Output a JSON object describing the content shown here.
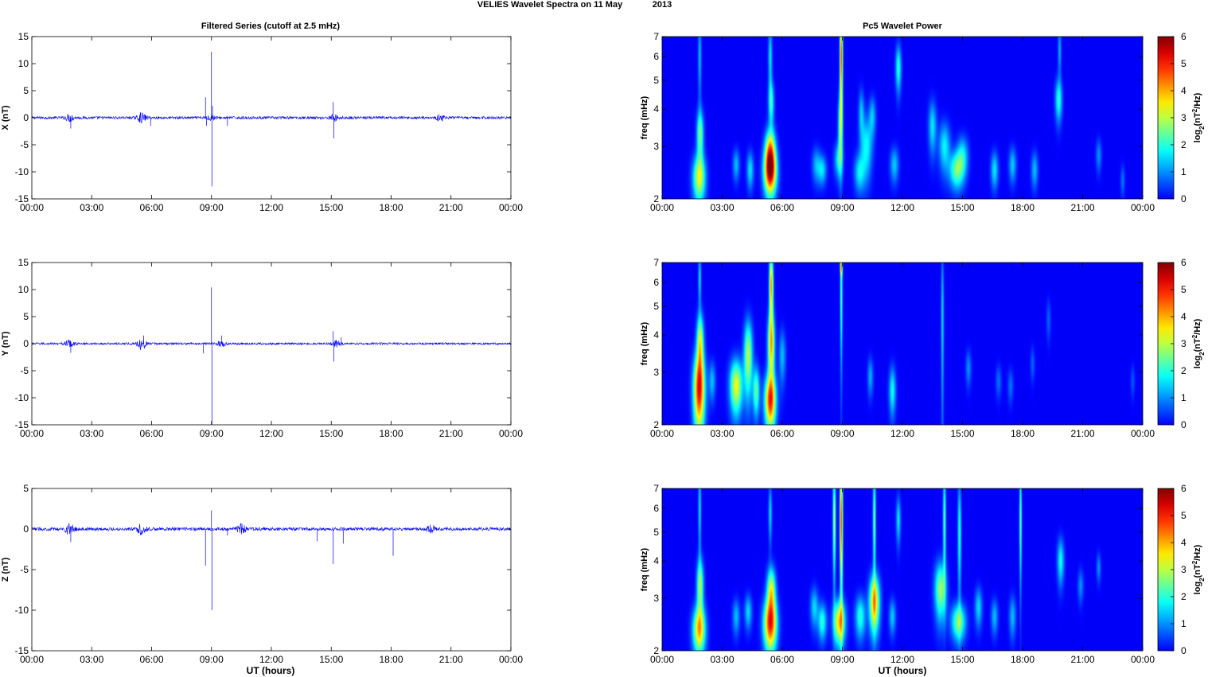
{
  "figure": {
    "title": "VELIES Wavelet Spectra on 11 May",
    "title_year": "2013",
    "left_title": "Filtered Series (cutoff at 2.5 mHz)",
    "right_title": "Pc5 Wavelet Power",
    "xlabel": "UT (hours)",
    "spec_ylabel": "freq (mHz)",
    "colorbar_label": "log2(nT2/Hz)"
  },
  "colors": {
    "trace": "#0000ff",
    "spectrogram_background": "#00008f",
    "axes": "#000000"
  },
  "chart_data": [
    {
      "type": "line",
      "id": "x",
      "ylabel": "X (nT)",
      "ylim": [
        -15,
        15
      ],
      "yticks": [
        -15,
        -10,
        -5,
        0,
        5,
        10,
        15
      ],
      "xlim": [
        0,
        24
      ],
      "xtick_labels": [
        "00:00",
        "03:00",
        "06:00",
        "09:00",
        "12:00",
        "15:00",
        "18:00",
        "21:00",
        "00:00"
      ],
      "baseline_noise_nT": 0.25,
      "bursts": [
        [
          1.9,
          0.6
        ],
        [
          5.5,
          0.8
        ],
        [
          9.0,
          0.4
        ],
        [
          15.2,
          0.6
        ],
        [
          20.5,
          0.6
        ]
      ],
      "spikes": [
        [
          1.95,
          -2.0
        ],
        [
          5.95,
          -1.5
        ],
        [
          8.7,
          3.8
        ],
        [
          8.75,
          -1.5
        ],
        [
          9.0,
          12.2
        ],
        [
          9.02,
          -12.7
        ],
        [
          9.05,
          2.2
        ],
        [
          9.8,
          -1.5
        ],
        [
          15.1,
          2.9
        ],
        [
          15.13,
          -3.8
        ]
      ]
    },
    {
      "type": "line",
      "id": "y",
      "ylabel": "Y (nT)",
      "ylim": [
        -15,
        15
      ],
      "yticks": [
        -15,
        -10,
        -5,
        0,
        5,
        10,
        15
      ],
      "xlim": [
        0,
        24
      ],
      "xtick_labels": [
        "00:00",
        "03:00",
        "06:00",
        "09:00",
        "12:00",
        "15:00",
        "18:00",
        "21:00",
        "00:00"
      ],
      "baseline_noise_nT": 0.2,
      "bursts": [
        [
          1.9,
          0.7
        ],
        [
          5.5,
          1.0
        ],
        [
          9.5,
          0.5
        ],
        [
          15.3,
          0.6
        ]
      ],
      "spikes": [
        [
          1.95,
          -1.7
        ],
        [
          5.6,
          1.5
        ],
        [
          8.6,
          -1.8
        ],
        [
          9.0,
          10.4
        ],
        [
          9.02,
          -15.0
        ],
        [
          9.5,
          1.5
        ],
        [
          15.1,
          2.3
        ],
        [
          15.13,
          -3.3
        ],
        [
          15.5,
          1.2
        ]
      ]
    },
    {
      "type": "line",
      "id": "z",
      "ylabel": "Z (nT)",
      "ylim": [
        -15,
        5
      ],
      "yticks": [
        -15,
        -10,
        -5,
        0,
        5
      ],
      "xlim": [
        0,
        24
      ],
      "xtick_labels": [
        "00:00",
        "03:00",
        "06:00",
        "09:00",
        "12:00",
        "15:00",
        "18:00",
        "21:00",
        "00:00"
      ],
      "baseline_noise_nT": 0.2,
      "bursts": [
        [
          1.9,
          0.7
        ],
        [
          5.5,
          0.7
        ],
        [
          10.5,
          0.6
        ],
        [
          20.0,
          0.4
        ]
      ],
      "spikes": [
        [
          1.95,
          -1.6
        ],
        [
          8.7,
          -4.5
        ],
        [
          9.0,
          2.3
        ],
        [
          9.02,
          -10.0
        ],
        [
          9.8,
          -0.8
        ],
        [
          14.3,
          -1.5
        ],
        [
          15.1,
          -4.3
        ],
        [
          15.6,
          -1.8
        ],
        [
          18.1,
          -3.3
        ]
      ]
    },
    {
      "type": "heatmap",
      "id": "x_power",
      "ylabel": "freq (mHz)",
      "ylim_mHz": [
        2,
        7
      ],
      "yticks": [
        2,
        3,
        4,
        5,
        6,
        7
      ],
      "xlim": [
        0,
        24
      ],
      "xtick_labels": [
        "00:00",
        "03:00",
        "06:00",
        "09:00",
        "12:00",
        "15:00",
        "18:00",
        "21:00",
        "00:00"
      ],
      "clim": [
        0,
        6
      ],
      "colorbar_ticks": [
        0,
        1,
        2,
        3,
        4,
        5,
        6
      ],
      "blobs": [
        [
          1.85,
          2.35,
          0.22,
          0.3,
          3.2
        ],
        [
          1.9,
          3.3,
          0.12,
          0.45,
          2.5
        ],
        [
          1.88,
          6.0,
          0.06,
          1.3,
          1.3
        ],
        [
          3.7,
          2.6,
          0.12,
          0.22,
          1.3
        ],
        [
          4.4,
          2.5,
          0.12,
          0.25,
          1.6
        ],
        [
          5.4,
          2.45,
          0.22,
          0.3,
          4.8
        ],
        [
          5.4,
          2.9,
          0.18,
          0.35,
          3.8
        ],
        [
          5.45,
          4.2,
          0.1,
          0.5,
          2.0
        ],
        [
          5.4,
          6.0,
          0.07,
          1.0,
          1.6
        ],
        [
          7.7,
          2.6,
          0.15,
          0.25,
          1.2
        ],
        [
          8.0,
          2.5,
          0.15,
          0.2,
          1.5
        ],
        [
          8.95,
          6.0,
          0.05,
          1.5,
          4.8
        ],
        [
          8.9,
          3.5,
          0.08,
          0.7,
          2.4
        ],
        [
          8.8,
          2.7,
          0.15,
          0.25,
          1.5
        ],
        [
          9.85,
          2.45,
          0.18,
          0.25,
          1.6
        ],
        [
          10.2,
          3.0,
          0.2,
          0.5,
          1.8
        ],
        [
          10.5,
          3.8,
          0.12,
          0.4,
          1.3
        ],
        [
          9.95,
          3.9,
          0.1,
          0.5,
          1.3
        ],
        [
          11.8,
          5.5,
          0.1,
          0.7,
          2.0
        ],
        [
          11.6,
          2.6,
          0.15,
          0.25,
          1.4
        ],
        [
          13.5,
          3.5,
          0.14,
          0.5,
          1.6
        ],
        [
          14.1,
          3.0,
          0.2,
          0.4,
          1.7
        ],
        [
          14.7,
          2.5,
          0.25,
          0.25,
          2.4
        ],
        [
          15.0,
          2.8,
          0.2,
          0.3,
          1.6
        ],
        [
          16.6,
          2.5,
          0.13,
          0.25,
          1.6
        ],
        [
          17.5,
          2.6,
          0.13,
          0.25,
          1.4
        ],
        [
          18.6,
          2.5,
          0.12,
          0.25,
          1.3
        ],
        [
          19.8,
          4.3,
          0.12,
          0.5,
          2.0
        ],
        [
          19.85,
          6.3,
          0.06,
          0.8,
          1.2
        ],
        [
          21.8,
          2.8,
          0.1,
          0.25,
          1.0
        ],
        [
          23.0,
          2.3,
          0.08,
          0.2,
          0.8
        ]
      ]
    },
    {
      "type": "heatmap",
      "id": "y_power",
      "ylabel": "freq (mHz)",
      "ylim_mHz": [
        2,
        7
      ],
      "yticks": [
        2,
        3,
        4,
        5,
        6,
        7
      ],
      "xlim": [
        0,
        24
      ],
      "xtick_labels": [
        "00:00",
        "03:00",
        "06:00",
        "09:00",
        "12:00",
        "15:00",
        "18:00",
        "21:00",
        "00:00"
      ],
      "clim": [
        0,
        6
      ],
      "colorbar_ticks": [
        0,
        1,
        2,
        3,
        4,
        5,
        6
      ],
      "blobs": [
        [
          1.85,
          2.6,
          0.2,
          0.55,
          5.0
        ],
        [
          1.9,
          3.8,
          0.12,
          0.6,
          3.2
        ],
        [
          1.88,
          6.2,
          0.05,
          0.9,
          1.6
        ],
        [
          2.5,
          2.8,
          0.12,
          0.3,
          1.3
        ],
        [
          3.7,
          2.7,
          0.22,
          0.4,
          3.4
        ],
        [
          4.3,
          3.4,
          0.15,
          0.7,
          3.0
        ],
        [
          4.7,
          2.6,
          0.12,
          0.35,
          2.4
        ],
        [
          5.4,
          2.4,
          0.2,
          0.35,
          4.6
        ],
        [
          5.45,
          3.7,
          0.12,
          0.7,
          3.8
        ],
        [
          5.45,
          5.9,
          0.07,
          1.0,
          4.2
        ],
        [
          6.0,
          3.4,
          0.12,
          0.5,
          1.3
        ],
        [
          8.95,
          5.5,
          0.04,
          1.8,
          2.4
        ],
        [
          8.95,
          6.8,
          0.04,
          0.3,
          2.8
        ],
        [
          10.4,
          2.9,
          0.1,
          0.3,
          1.2
        ],
        [
          11.5,
          2.6,
          0.12,
          0.35,
          1.8
        ],
        [
          14.0,
          4.5,
          0.05,
          2.0,
          1.5
        ],
        [
          15.3,
          3.1,
          0.1,
          0.3,
          1.0
        ],
        [
          16.8,
          2.8,
          0.1,
          0.25,
          0.8
        ],
        [
          17.4,
          2.7,
          0.1,
          0.25,
          0.8
        ],
        [
          18.5,
          3.2,
          0.08,
          0.3,
          0.7
        ],
        [
          19.3,
          4.5,
          0.08,
          0.5,
          0.7
        ],
        [
          23.5,
          2.8,
          0.08,
          0.25,
          0.6
        ]
      ]
    },
    {
      "type": "heatmap",
      "id": "z_power",
      "ylabel": "freq (mHz)",
      "ylim_mHz": [
        2,
        7
      ],
      "yticks": [
        2,
        3,
        4,
        5,
        6,
        7
      ],
      "xlim": [
        0,
        24
      ],
      "xtick_labels": [
        "00:00",
        "03:00",
        "06:00",
        "09:00",
        "12:00",
        "15:00",
        "18:00",
        "21:00",
        "00:00"
      ],
      "clim": [
        0,
        6
      ],
      "colorbar_ticks": [
        0,
        1,
        2,
        3,
        4,
        5,
        6
      ],
      "blobs": [
        [
          1.85,
          2.35,
          0.22,
          0.3,
          3.8
        ],
        [
          1.9,
          3.3,
          0.12,
          0.5,
          2.8
        ],
        [
          1.88,
          6.0,
          0.05,
          1.4,
          1.6
        ],
        [
          3.7,
          2.6,
          0.13,
          0.25,
          1.3
        ],
        [
          4.3,
          2.7,
          0.13,
          0.25,
          1.5
        ],
        [
          5.4,
          2.45,
          0.23,
          0.35,
          4.8
        ],
        [
          5.45,
          3.2,
          0.15,
          0.4,
          3.2
        ],
        [
          5.4,
          5.8,
          0.06,
          0.9,
          1.5
        ],
        [
          7.6,
          2.8,
          0.14,
          0.3,
          1.5
        ],
        [
          8.0,
          2.5,
          0.15,
          0.25,
          2.0
        ],
        [
          8.6,
          5.5,
          0.05,
          1.5,
          3.0
        ],
        [
          8.95,
          5.5,
          0.05,
          1.8,
          4.8
        ],
        [
          8.85,
          2.5,
          0.2,
          0.3,
          3.8
        ],
        [
          9.9,
          2.6,
          0.18,
          0.3,
          2.0
        ],
        [
          10.6,
          2.9,
          0.18,
          0.45,
          4.0
        ],
        [
          10.6,
          5.5,
          0.05,
          1.5,
          2.6
        ],
        [
          11.8,
          5.5,
          0.08,
          0.7,
          1.6
        ],
        [
          11.5,
          2.6,
          0.12,
          0.25,
          1.4
        ],
        [
          13.9,
          3.2,
          0.2,
          0.5,
          2.8
        ],
        [
          14.1,
          5.5,
          0.05,
          1.5,
          2.4
        ],
        [
          14.8,
          2.5,
          0.25,
          0.25,
          2.6
        ],
        [
          14.85,
          5.0,
          0.06,
          1.5,
          2.0
        ],
        [
          15.8,
          2.8,
          0.13,
          0.3,
          1.5
        ],
        [
          16.6,
          2.6,
          0.12,
          0.25,
          1.3
        ],
        [
          17.5,
          2.6,
          0.12,
          0.3,
          1.3
        ],
        [
          17.9,
          5.5,
          0.04,
          1.6,
          2.5
        ],
        [
          19.9,
          4.0,
          0.12,
          0.5,
          1.8
        ],
        [
          20.9,
          3.3,
          0.1,
          0.3,
          1.0
        ],
        [
          21.8,
          3.8,
          0.08,
          0.3,
          1.0
        ]
      ]
    }
  ]
}
